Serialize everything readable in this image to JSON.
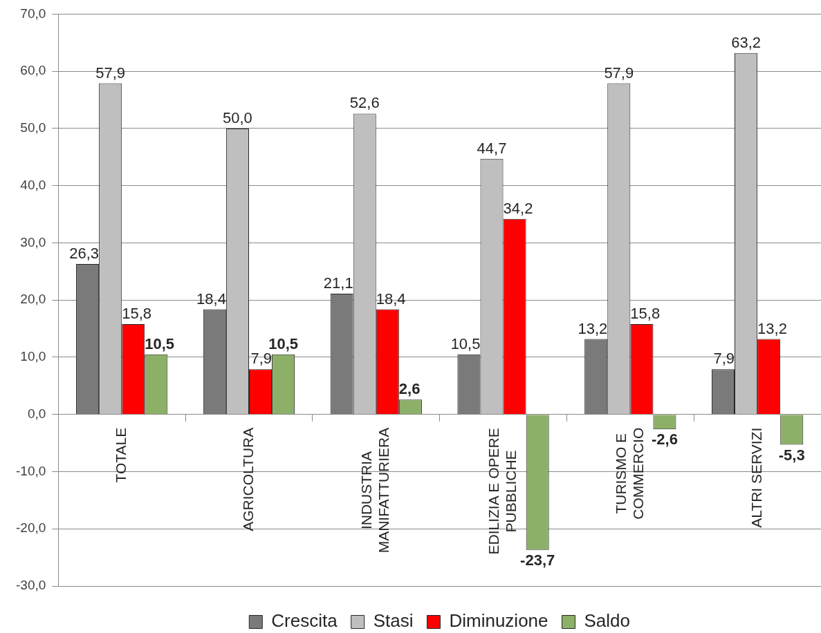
{
  "chart_data": {
    "type": "bar",
    "categories": [
      "TOTALE",
      "AGRICOLTURA",
      "INDUSTRIA MANIFATTURIERA",
      "EDILIZIA E OPERE PUBBLICHE",
      "TURISMO E COMMERCIO",
      "ALTRI SERVIZI"
    ],
    "series": [
      {
        "name": "Crescita",
        "color": "#7a7a7a",
        "values": [
          26.3,
          18.4,
          21.1,
          10.5,
          13.2,
          7.9
        ],
        "value_labels": [
          "26,3",
          "18,4",
          "21,1",
          "10,5",
          "13,2",
          "7,9"
        ]
      },
      {
        "name": "Stasi",
        "color": "#bfbfbf",
        "values": [
          57.9,
          50.0,
          52.6,
          44.7,
          57.9,
          63.2
        ],
        "value_labels": [
          "57,9",
          "50,0",
          "52,6",
          "44,7",
          "57,9",
          "63,2"
        ]
      },
      {
        "name": "Diminuzione",
        "color": "#ff0000",
        "values": [
          15.8,
          7.9,
          18.4,
          34.2,
          15.8,
          13.2
        ],
        "value_labels": [
          "15,8",
          "7,9",
          "18,4",
          "34,2",
          "15,8",
          "13,2"
        ]
      },
      {
        "name": "Saldo",
        "color": "#8db068",
        "values": [
          10.5,
          10.5,
          2.6,
          -23.7,
          -2.6,
          -5.3
        ],
        "value_labels": [
          "10,5",
          "10,5",
          "2,6",
          "-23,7",
          "-2,6",
          "-5,3"
        ]
      }
    ],
    "ylim": [
      -30,
      70
    ],
    "yticks": [
      {
        "value": -30,
        "label": "-30,0"
      },
      {
        "value": -20,
        "label": "-20,0"
      },
      {
        "value": -10,
        "label": "-10,0"
      },
      {
        "value": 0,
        "label": "0,0"
      },
      {
        "value": 10,
        "label": "10,0"
      },
      {
        "value": 20,
        "label": "20,0"
      },
      {
        "value": 30,
        "label": "30,0"
      },
      {
        "value": 40,
        "label": "40,0"
      },
      {
        "value": 50,
        "label": "50,0"
      },
      {
        "value": 60,
        "label": "60,0"
      },
      {
        "value": 70,
        "label": "70,0"
      }
    ],
    "grid": "y",
    "legend": "bottom"
  }
}
